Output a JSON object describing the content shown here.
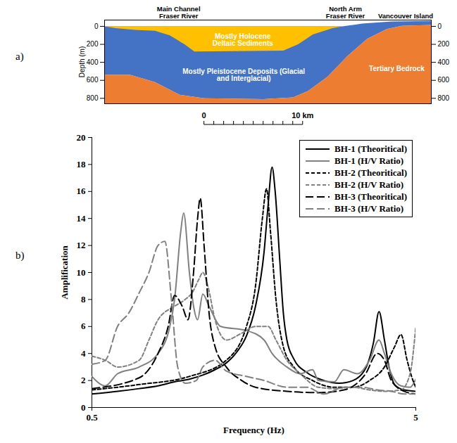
{
  "chart_data": [
    {
      "type": "area",
      "label": "a)",
      "ylabel": "Depth (m)",
      "xlim": [
        -10.1,
        23
      ],
      "ylim": [
        -70,
        860
      ],
      "yticks": [
        0,
        200,
        400,
        600,
        800
      ],
      "scale_bar": {
        "ticks": [
          0,
          1,
          2,
          3,
          4,
          5,
          6,
          7,
          8,
          9,
          10
        ],
        "labels": [
          {
            "value": 0,
            "label": "0"
          },
          {
            "value": 10,
            "label": "10 km"
          }
        ]
      },
      "layers": [
        {
          "name": "Mostly Pleistocene Deposits (Glacial and Interglacial)",
          "color": "#4472C4",
          "x": [
            -10.1,
            14,
            16,
            19,
            23,
            23,
            20,
            18.5,
            16.5,
            14.5,
            12.5,
            10.5,
            9,
            6,
            0,
            -2.5,
            -5,
            -7.5,
            -10.1
          ],
          "depth": [
            0,
            0,
            -30,
            -55,
            -60,
            -15,
            -5,
            30,
            140,
            330,
            560,
            720,
            790,
            810,
            800,
            760,
            620,
            540,
            540
          ],
          "label_x": 4,
          "label_depth": 540
        },
        {
          "name": "Tertiary Bedrock",
          "color": "#ED7D31",
          "x": [
            -10.1,
            -7.5,
            -5,
            -2.5,
            0,
            6,
            9,
            10.5,
            12.5,
            14.5,
            16.5,
            18.5,
            20,
            23,
            23,
            -10.1
          ],
          "depth": [
            540,
            540,
            620,
            760,
            800,
            810,
            790,
            720,
            560,
            330,
            140,
            30,
            -5,
            -15,
            860,
            860
          ],
          "label_x": 19.5,
          "label_depth": 470
        },
        {
          "name": "Mostly Holocene Deltaic Sediments",
          "color": "#FFC000",
          "x": [
            -10.1,
            -9,
            -7,
            -5,
            -3.5,
            -2,
            -1,
            8,
            9.5,
            11,
            13,
            14
          ],
          "depth": [
            0,
            20,
            40,
            50,
            100,
            200,
            280,
            270,
            200,
            90,
            20,
            0
          ],
          "label_x": 3.9,
          "label_depth": 150
        }
      ],
      "annotations": [
        {
          "text": "Main Channel Fraser River",
          "x": -2.6
        },
        {
          "text": "North Arm Fraser River",
          "x": 14.3
        },
        {
          "text": "Vancouver Island",
          "x": 20.4
        }
      ]
    },
    {
      "type": "line",
      "label": "b)",
      "xlabel": "Frequency (Hz)",
      "ylabel": "Amplification",
      "log": "x",
      "xlim": [
        0.5,
        5
      ],
      "xticks": [
        0.5,
        5
      ],
      "ylim": [
        0,
        20
      ],
      "yticks": [
        0,
        2,
        4,
        6,
        8,
        10,
        12,
        14,
        16,
        18,
        20
      ],
      "legend": "top-right",
      "series": [
        {
          "name": "BH-1 (Theoritical)",
          "color": "#000000",
          "line_style": "solid",
          "x": [
            0.5,
            0.6,
            0.7,
            0.8,
            0.9,
            1.0,
            1.1,
            1.2,
            1.3,
            1.4,
            1.5,
            1.6,
            1.7,
            1.75,
            1.8,
            1.84,
            1.9,
            1.95,
            2.0,
            2.1,
            2.3,
            2.6,
            2.9,
            3.2,
            3.5,
            3.7,
            3.85,
            4.0,
            4.15,
            4.3,
            4.6,
            5.0
          ],
          "values": [
            1.0,
            1.2,
            1.4,
            1.6,
            1.9,
            2.1,
            2.4,
            2.8,
            3.3,
            4.1,
            5.3,
            7.5,
            11.5,
            15.0,
            17.8,
            16.0,
            11.0,
            7.0,
            5.0,
            3.6,
            2.6,
            2.0,
            1.8,
            2.0,
            2.9,
            4.8,
            7.1,
            5.0,
            2.8,
            1.7,
            1.3,
            1.2
          ]
        },
        {
          "name": "BH-1 (H/V Ratio)",
          "color": "#808080",
          "line_style": "solid",
          "x": [
            0.5,
            0.55,
            0.6,
            0.7,
            0.8,
            0.87,
            0.9,
            0.94,
            0.96,
            1.0,
            1.03,
            1.06,
            1.1,
            1.15,
            1.25,
            1.5,
            1.7,
            1.8,
            2.0,
            2.2,
            2.4,
            2.5,
            2.8,
            3.0,
            3.3,
            3.6,
            3.85,
            4.0,
            4.2,
            4.5,
            4.8,
            5.0
          ],
          "values": [
            2.3,
            1.6,
            2.5,
            3.0,
            4.0,
            6.0,
            8.0,
            13.0,
            14.4,
            10.0,
            7.5,
            6.5,
            8.4,
            7.5,
            6.0,
            5.7,
            5.0,
            4.0,
            3.0,
            2.5,
            2.8,
            2.0,
            1.9,
            2.8,
            2.5,
            3.5,
            5.0,
            4.0,
            2.5,
            1.6,
            1.5,
            2.1
          ]
        },
        {
          "name": "BH-2 (Theoritical)",
          "color": "#000000",
          "line_style": "dashed",
          "x": [
            0.5,
            0.7,
            1.0,
            1.3,
            1.5,
            1.6,
            1.68,
            1.73,
            1.78,
            1.85,
            1.95,
            2.1,
            2.4,
            2.8,
            3.2,
            3.6,
            4.0,
            4.3,
            4.5,
            4.7,
            4.9,
            5.0
          ],
          "values": [
            1.3,
            1.7,
            2.3,
            3.5,
            6.0,
            9.0,
            14.0,
            16.2,
            13.0,
            8.0,
            4.5,
            3.0,
            2.0,
            1.5,
            1.5,
            2.0,
            3.0,
            4.5,
            5.4,
            3.5,
            2.0,
            1.5
          ]
        },
        {
          "name": "BH-2 (H/V Ratio)",
          "color": "#808080",
          "line_style": "dashed",
          "x": [
            0.5,
            0.55,
            0.6,
            0.7,
            0.75,
            0.8,
            0.9,
            0.97,
            1.02,
            1.07,
            1.1,
            1.14,
            1.2,
            1.3,
            1.45,
            1.6,
            1.75,
            1.85,
            2.0,
            2.2,
            2.5,
            2.8,
            3.2,
            3.6,
            4.0,
            4.5,
            4.8,
            5.0
          ],
          "values": [
            3.8,
            3.5,
            3.0,
            3.5,
            5.0,
            6.5,
            7.5,
            8.0,
            8.5,
            9.5,
            10.0,
            9.0,
            6.5,
            5.0,
            5.5,
            6.0,
            6.0,
            5.0,
            3.5,
            2.5,
            1.5,
            1.4,
            1.5,
            1.3,
            1.2,
            1.3,
            2.5,
            6.0
          ]
        },
        {
          "name": "BH-3 (Theoritical)",
          "color": "#000000",
          "line_style": "long-dash",
          "x": [
            0.5,
            0.7,
            0.8,
            0.86,
            0.9,
            0.95,
            0.99,
            1.03,
            1.06,
            1.08,
            1.11,
            1.15,
            1.2,
            1.3,
            1.45,
            1.6,
            2.0,
            2.5,
            3.0,
            3.5,
            3.8,
            4.0,
            4.2,
            4.6,
            5.0
          ],
          "values": [
            1.4,
            2.2,
            4.0,
            6.0,
            8.3,
            7.5,
            6.5,
            10.0,
            14.0,
            15.5,
            12.0,
            7.0,
            4.5,
            3.0,
            2.0,
            1.5,
            1.2,
            1.1,
            1.3,
            2.5,
            4.0,
            3.5,
            2.0,
            1.2,
            1.0
          ]
        },
        {
          "name": "BH-3 (H/V Ratio)",
          "color": "#808080",
          "line_style": "long-dash",
          "x": [
            0.5,
            0.55,
            0.6,
            0.65,
            0.7,
            0.75,
            0.8,
            0.84,
            0.88,
            0.92,
            0.97,
            1.05,
            1.1,
            1.2,
            1.3,
            1.5,
            1.7,
            2.0,
            2.3,
            2.6,
            3.0,
            3.4,
            3.8,
            4.2,
            4.6,
            5.0
          ],
          "values": [
            3.2,
            3.5,
            6.0,
            7.0,
            8.5,
            10.0,
            12.0,
            12.3,
            8.0,
            3.0,
            1.8,
            2.0,
            3.0,
            3.5,
            2.7,
            2.3,
            2.0,
            1.5,
            1.5,
            1.0,
            1.5,
            1.5,
            1.3,
            1.2,
            1.0,
            1.0
          ]
        }
      ]
    }
  ]
}
